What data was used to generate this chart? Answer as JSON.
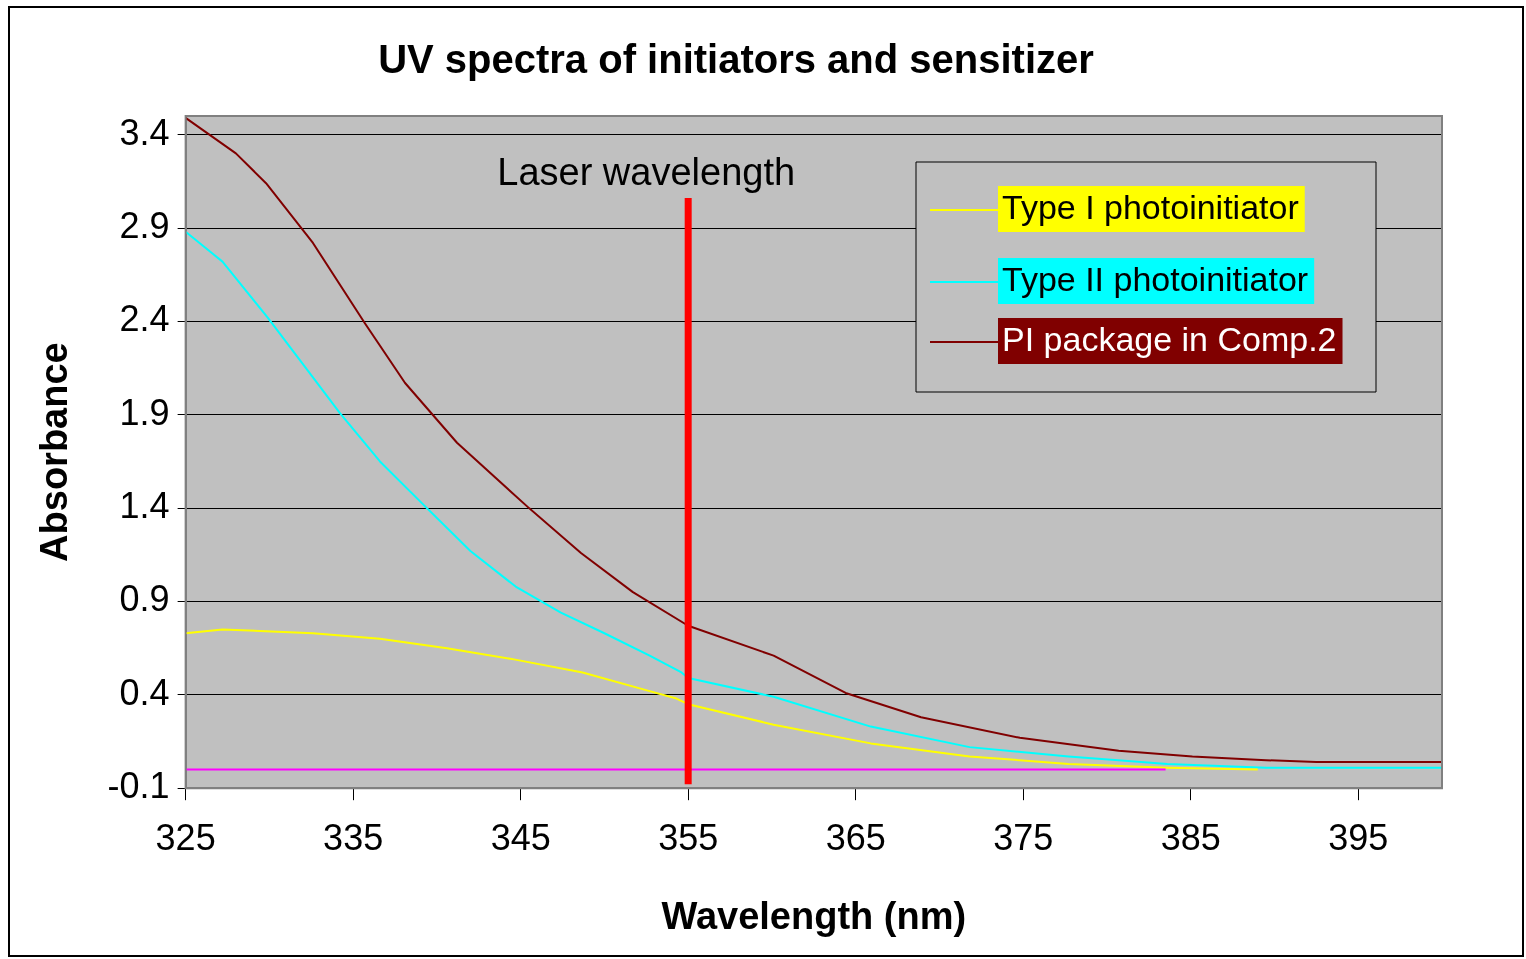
{
  "chart_data": {
    "type": "line",
    "title": "UV spectra of initiators and sensitizer",
    "xlabel": "Wavelength (nm)",
    "ylabel": "Absorbance",
    "xlim": [
      325,
      400
    ],
    "xticks": [
      325,
      335,
      345,
      355,
      365,
      375,
      385,
      395
    ],
    "ylim": [
      -0.1,
      3.5
    ],
    "yticks": [
      -0.1,
      0.4,
      0.9,
      1.4,
      1.9,
      2.4,
      2.9,
      3.4
    ],
    "grid": "y",
    "legend": "top right",
    "marker": "none",
    "line_style": "solid",
    "ref_lines": [
      {
        "axis": "x",
        "value": 355,
        "label": "Laser wavelength",
        "color": "#ff0000"
      }
    ],
    "series": [
      {
        "color": "#ff00ff",
        "x": [
          325,
          383.5
        ],
        "values": [
          0,
          0
        ]
      },
      {
        "name": "Type I photoinitiator",
        "color": "#ffff00",
        "x": [
          325,
          327.2,
          332.6,
          336.6,
          340.6,
          344.6,
          348.7,
          352.7,
          354.3,
          355,
          360.1,
          365.9,
          371.8,
          377.7,
          383.6,
          389
        ],
        "values": [
          0.73,
          0.75,
          0.73,
          0.7,
          0.65,
          0.59,
          0.52,
          0.42,
          0.38,
          0.35,
          0.24,
          0.14,
          0.07,
          0.03,
          0.01,
          0
        ]
      },
      {
        "name": "Type II photoinitiator",
        "color": "#00ffff",
        "x": [
          325,
          327.2,
          329.9,
          332.6,
          334.2,
          336.6,
          339.4,
          342,
          344.7,
          347.4,
          350,
          352.7,
          354.6,
          355,
          360.1,
          365.9,
          371.8,
          377.7,
          383.6,
          389.5,
          400
        ],
        "values": [
          2.88,
          2.72,
          2.42,
          2.1,
          1.91,
          1.65,
          1.4,
          1.17,
          0.98,
          0.84,
          0.73,
          0.61,
          0.52,
          0.49,
          0.39,
          0.23,
          0.12,
          0.07,
          0.03,
          0.01,
          0.01
        ]
      },
      {
        "name": "PI package in Comp.2",
        "color": "#800000",
        "x": [
          325,
          328,
          329.8,
          332.6,
          335.7,
          338.1,
          341.2,
          345.5,
          348.6,
          351.7,
          355,
          360.1,
          364.4,
          368.9,
          374.8,
          380.7,
          385.1,
          389.5,
          392.5,
          400
        ],
        "values": [
          3.49,
          3.3,
          3.14,
          2.82,
          2.39,
          2.07,
          1.75,
          1.4,
          1.16,
          0.95,
          0.77,
          0.61,
          0.41,
          0.28,
          0.17,
          0.1,
          0.07,
          0.05,
          0.04,
          0.04
        ]
      }
    ]
  }
}
